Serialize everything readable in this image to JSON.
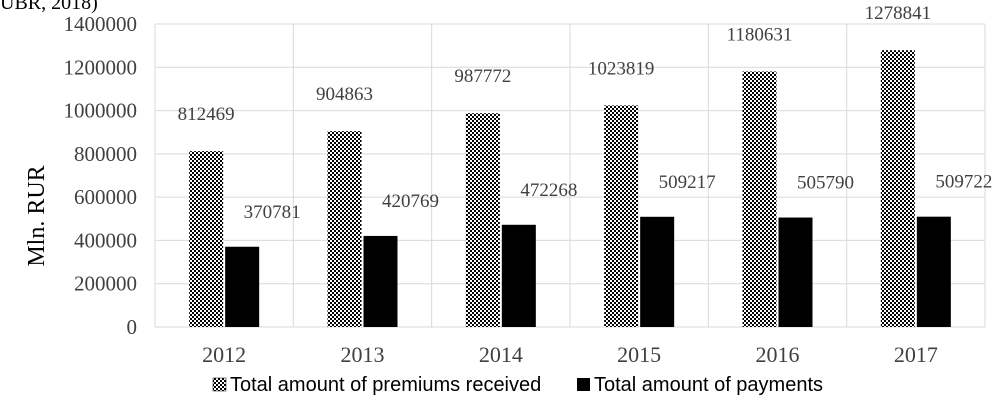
{
  "header_fragment": "UBR, 2018)",
  "chart_data": {
    "type": "bar",
    "categories": [
      "2012",
      "2013",
      "2014",
      "2015",
      "2016",
      "2017"
    ],
    "series": [
      {
        "name": "Total amount of premiums received",
        "values": [
          812469,
          904863,
          987772,
          1023819,
          1180631,
          1278841
        ],
        "pattern": "checkered"
      },
      {
        "name": "Total amount of payments",
        "values": [
          370781,
          420769,
          472268,
          509217,
          505790,
          509722
        ],
        "color": "#000000"
      }
    ],
    "y_ticks": [
      "0",
      "200000",
      "400000",
      "600000",
      "800000",
      "1000000",
      "1200000",
      "1400000"
    ],
    "ylim": [
      0,
      1400000
    ],
    "ylabel": "Mln. RUR",
    "xlabel": "",
    "grid": true,
    "legend_position": "bottom"
  }
}
